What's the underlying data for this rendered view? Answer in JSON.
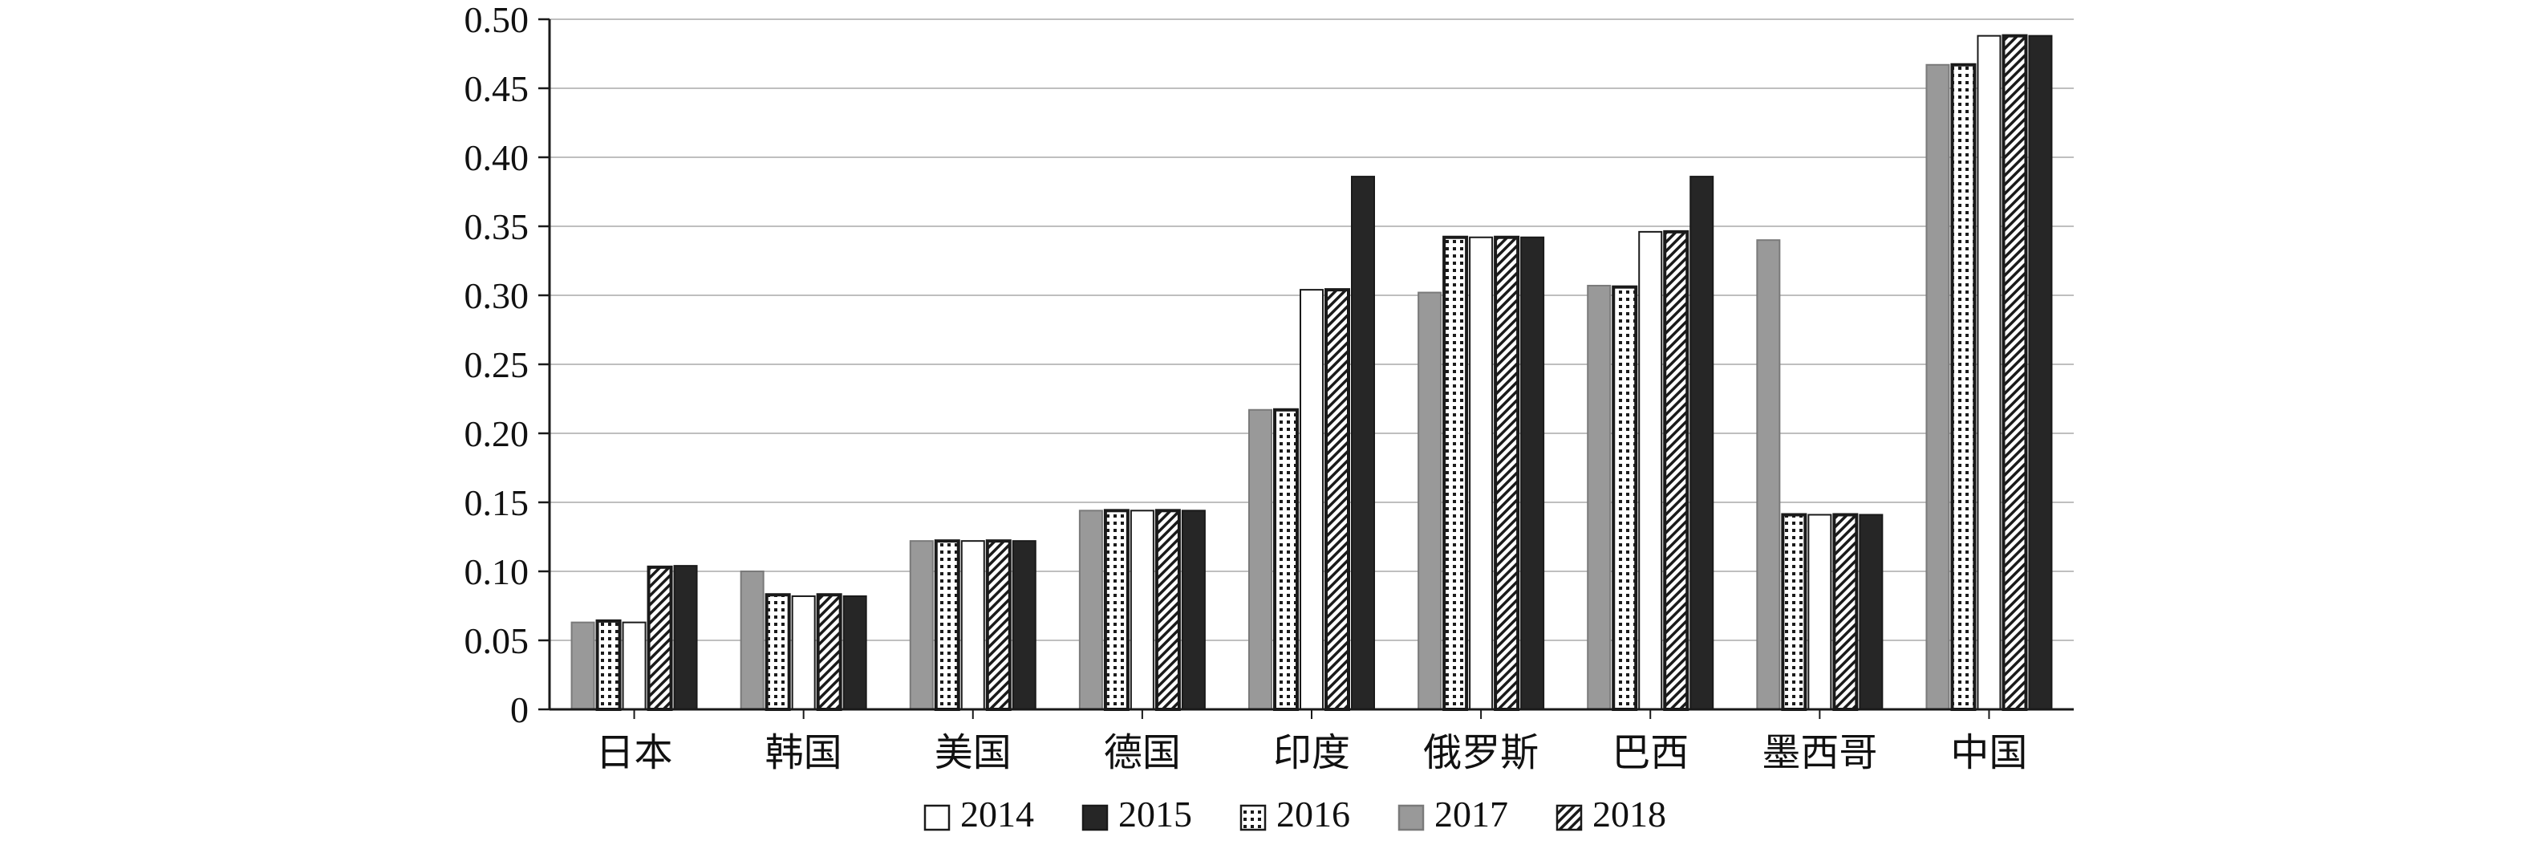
{
  "chart_data": {
    "type": "bar",
    "categories": [
      "日本",
      "韩国",
      "美国",
      "德国",
      "印度",
      "俄罗斯",
      "巴西",
      "墨西哥",
      "中国"
    ],
    "ylim": [
      0,
      0.5
    ],
    "yticks": [
      "0",
      "0.05",
      "0.10",
      "0.15",
      "0.20",
      "0.25",
      "0.30",
      "0.35",
      "0.40",
      "0.45",
      "0.50"
    ],
    "grid": "horizontal",
    "legend_position": "bottom",
    "bar_order": [
      "2017",
      "2016",
      "2014",
      "2018",
      "2015"
    ],
    "series": [
      {
        "name": "2014",
        "pattern": "white",
        "values": [
          0.063,
          0.082,
          0.122,
          0.144,
          0.304,
          0.342,
          0.346,
          0.141,
          0.488
        ]
      },
      {
        "name": "2015",
        "pattern": "dark",
        "values": [
          0.104,
          0.082,
          0.122,
          0.144,
          0.386,
          0.342,
          0.386,
          0.141,
          0.488
        ]
      },
      {
        "name": "2016",
        "pattern": "dotted",
        "values": [
          0.064,
          0.083,
          0.122,
          0.144,
          0.217,
          0.342,
          0.306,
          0.141,
          0.467
        ]
      },
      {
        "name": "2017",
        "pattern": "gray",
        "values": [
          0.063,
          0.1,
          0.122,
          0.144,
          0.217,
          0.302,
          0.307,
          0.34,
          0.467
        ]
      },
      {
        "name": "2018",
        "pattern": "hatched",
        "values": [
          0.103,
          0.083,
          0.122,
          0.144,
          0.304,
          0.342,
          0.346,
          0.141,
          0.488
        ]
      }
    ],
    "colors": {
      "dark": "#262626",
      "gray": "#999999",
      "white": "#ffffff",
      "outline": "#1a1a1a",
      "grid": "#bfbfbf"
    }
  }
}
